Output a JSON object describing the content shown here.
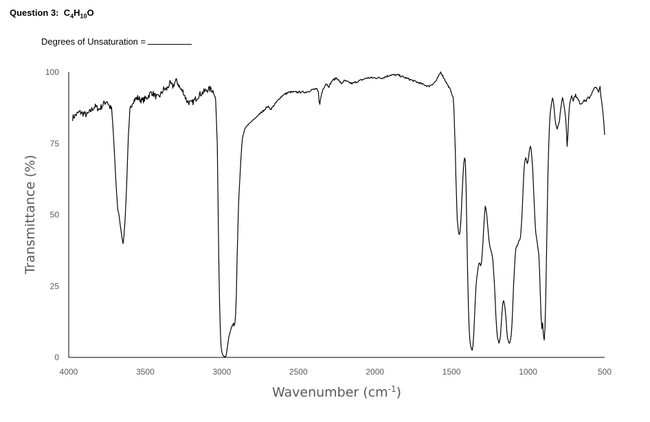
{
  "header": {
    "question_label": "Question 3:",
    "formula_parts": [
      {
        "text": "C",
        "sub": false
      },
      {
        "text": "4",
        "sub": true
      },
      {
        "text": "H",
        "sub": false
      },
      {
        "text": "10",
        "sub": true
      },
      {
        "text": "O",
        "sub": false
      }
    ],
    "dou_label": "Degrees of Unsaturation ="
  },
  "chart_data": {
    "type": "line",
    "title": "",
    "xlabel": "Wavenumber (cm",
    "xlabel_sup": "-1",
    "xlabel_suffix": ")",
    "ylabel": "Transmittance (%)",
    "xlim": [
      4000,
      500
    ],
    "ylim": [
      0,
      100
    ],
    "x_reversed": true,
    "grid": false,
    "legend": "none",
    "line_color": "#000000",
    "x_ticks": [
      4000,
      3500,
      3000,
      2500,
      2000,
      1500,
      1000,
      500
    ],
    "y_ticks": [
      0,
      25,
      50,
      75,
      100
    ],
    "series": [
      {
        "x": [
          3975,
          3930,
          3880,
          3830,
          3800,
          3770,
          3750,
          3735,
          3720,
          3710,
          3700,
          3690,
          3680,
          3672,
          3665,
          3660,
          3652,
          3645,
          3640,
          3632,
          3625,
          3618,
          3610,
          3600,
          3580,
          3550,
          3520,
          3490,
          3460,
          3440,
          3420,
          3400,
          3380,
          3360,
          3340,
          3320,
          3300,
          3285,
          3270,
          3250,
          3230,
          3200,
          3180,
          3150,
          3120,
          3090,
          3070,
          3050,
          3040,
          3030,
          3025,
          3020,
          3015,
          3010,
          3005,
          3000,
          2995,
          2990,
          2985,
          2980,
          2975,
          2970,
          2965,
          2960,
          2955,
          2950,
          2945,
          2940,
          2935,
          2930,
          2925,
          2920,
          2915,
          2910,
          2905,
          2900,
          2890,
          2880,
          2875,
          2870,
          2865,
          2860,
          2855,
          2850,
          2840,
          2820,
          2800,
          2780,
          2760,
          2740,
          2720,
          2700,
          2680,
          2650,
          2620,
          2600,
          2560,
          2500,
          2450,
          2400,
          2380,
          2370,
          2365,
          2360,
          2350,
          2340,
          2320,
          2300,
          2280,
          2250,
          2220,
          2200,
          2150,
          2100,
          2050,
          2000,
          1950,
          1900,
          1850,
          1800,
          1750,
          1700,
          1650,
          1620,
          1600,
          1590,
          1580,
          1570,
          1560,
          1550,
          1540,
          1530,
          1520,
          1510,
          1500,
          1495,
          1490,
          1485,
          1480,
          1475,
          1472,
          1468,
          1465,
          1462,
          1458,
          1455,
          1450,
          1445,
          1440,
          1435,
          1430,
          1425,
          1420,
          1415,
          1410,
          1405,
          1400,
          1395,
          1390,
          1385,
          1380,
          1375,
          1370,
          1365,
          1360,
          1355,
          1350,
          1345,
          1340,
          1335,
          1330,
          1325,
          1320,
          1315,
          1310,
          1305,
          1300,
          1295,
          1290,
          1285,
          1280,
          1275,
          1270,
          1265,
          1260,
          1255,
          1250,
          1245,
          1240,
          1235,
          1230,
          1225,
          1220,
          1215,
          1210,
          1205,
          1200,
          1195,
          1190,
          1185,
          1180,
          1175,
          1170,
          1165,
          1160,
          1155,
          1150,
          1145,
          1140,
          1135,
          1130,
          1125,
          1120,
          1115,
          1110,
          1105,
          1100,
          1095,
          1090,
          1085,
          1080,
          1075,
          1070,
          1065,
          1060,
          1055,
          1050,
          1045,
          1040,
          1035,
          1030,
          1025,
          1020,
          1015,
          1010,
          1005,
          1000,
          995,
          990,
          985,
          980,
          975,
          970,
          965,
          960,
          955,
          950,
          945,
          940,
          935,
          930,
          925,
          920,
          915,
          910,
          905,
          900,
          895,
          890,
          885,
          880,
          875,
          870,
          865,
          860,
          855,
          850,
          845,
          840,
          835,
          830,
          825,
          820,
          815,
          810,
          805,
          800,
          795,
          790,
          785,
          780,
          775,
          770,
          765,
          760,
          755,
          750,
          745,
          740,
          735,
          730,
          725,
          720,
          715,
          710,
          705,
          700,
          690,
          680,
          670,
          660,
          650,
          640,
          630,
          620,
          610,
          600,
          590,
          580,
          570,
          560,
          550,
          540,
          530,
          525,
          520,
          515,
          510,
          505,
          500
        ],
        "y": [
          84,
          86,
          85,
          88,
          87,
          89,
          90,
          88,
          87,
          80,
          70,
          60,
          52,
          50,
          47,
          45,
          42,
          40,
          42,
          48,
          56,
          66,
          78,
          87,
          90,
          91,
          90,
          91,
          93,
          92,
          91,
          92,
          94,
          94,
          96,
          95,
          97,
          96,
          94,
          93,
          90,
          89,
          90,
          92,
          93,
          94,
          94,
          93,
          90,
          75,
          55,
          35,
          20,
          10,
          4,
          2,
          1,
          0.5,
          0.2,
          0.2,
          0.3,
          1,
          3,
          5,
          7,
          8,
          9,
          10,
          11,
          11,
          12,
          11,
          12,
          15,
          22,
          35,
          55,
          65,
          70,
          74,
          77,
          78,
          79,
          80,
          81,
          82,
          83,
          84,
          85,
          86,
          87,
          88,
          87,
          89,
          91,
          92,
          93,
          93,
          93,
          94,
          94,
          93,
          90,
          89,
          92,
          94,
          96,
          95,
          97,
          98,
          96,
          97,
          96,
          97,
          98,
          98,
          98,
          99,
          99,
          98,
          97,
          96,
          95,
          96,
          97,
          98,
          99,
          100,
          99,
          98,
          97,
          96,
          95,
          94,
          93,
          92,
          91,
          88,
          80,
          72,
          64,
          57,
          52,
          48,
          46,
          44,
          43,
          44,
          47,
          52,
          58,
          64,
          68,
          70,
          69,
          60,
          45,
          30,
          18,
          10,
          6,
          4,
          3,
          2.5,
          4,
          8,
          14,
          20,
          25,
          28,
          30,
          32,
          33,
          33,
          32,
          33,
          36,
          40,
          45,
          50,
          53,
          52,
          50,
          47,
          44,
          41,
          39,
          38,
          37,
          36,
          34,
          30,
          26,
          20,
          14,
          10,
          7,
          6,
          5,
          6,
          8,
          12,
          16,
          19,
          20,
          19,
          17,
          14,
          10,
          7,
          6,
          5,
          5,
          6,
          8,
          12,
          18,
          25,
          30,
          35,
          38,
          39,
          39,
          40,
          41,
          41,
          42,
          45,
          50,
          56,
          62,
          67,
          69,
          70,
          69,
          68,
          69,
          71,
          73,
          74,
          73,
          70,
          66,
          60,
          54,
          48,
          44,
          42,
          40,
          38,
          36,
          30,
          22,
          14,
          10,
          12,
          8,
          6,
          10,
          20,
          35,
          50,
          65,
          75,
          82,
          86,
          88,
          90,
          91,
          90,
          87,
          84,
          82,
          81,
          80,
          81,
          82,
          83,
          86,
          88,
          90,
          91,
          90,
          88,
          86,
          84,
          80,
          74,
          78,
          84,
          88,
          90,
          91,
          92,
          91,
          90,
          91,
          92,
          91,
          90,
          89,
          89,
          90,
          90,
          90,
          91,
          91,
          92,
          93,
          94,
          95,
          94,
          93,
          95,
          92,
          90,
          88,
          85,
          82,
          78
        ]
      }
    ]
  }
}
